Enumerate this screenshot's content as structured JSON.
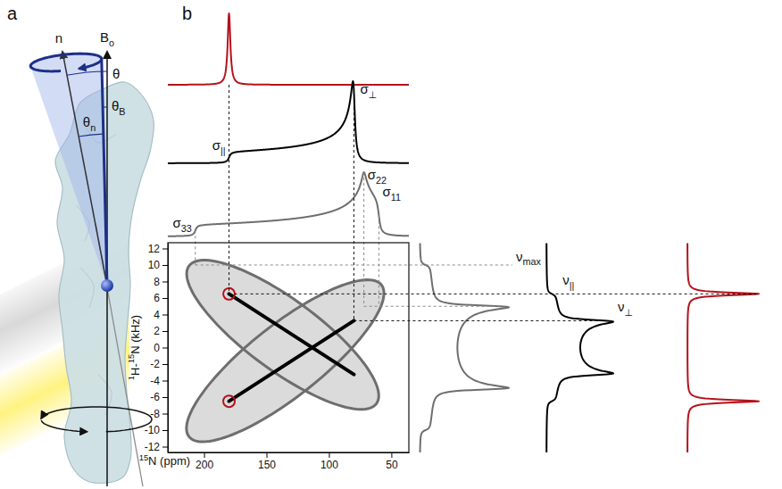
{
  "panel_a": {
    "letter": "a",
    "labels": [
      "n",
      "Bo",
      "θ",
      "θn",
      "θB"
    ]
  },
  "panel_b": {
    "letter": "b"
  },
  "chart_data": {
    "type": "pisema",
    "x_label": "15N (ppm)",
    "y_label": "1H-15N (kHz)",
    "xlim": [
      229,
      36
    ],
    "ylim": [
      -12.7,
      12.7
    ],
    "xticks": [
      200,
      150,
      100,
      50
    ],
    "yticks": [
      12,
      10,
      8,
      6,
      4,
      2,
      0,
      -2,
      -4,
      -6,
      -8,
      -10,
      -12
    ],
    "ellipses": [
      {
        "color": "#6e6e6e",
        "x": [
          212,
          62,
          120
        ],
        "y": [
          9.9,
          -6.8,
          5.0
        ]
      },
      {
        "color": "#6e6e6e",
        "x": [
          212,
          58,
          117
        ],
        "y": [
          -10.8,
          7.6,
          -5.0
        ]
      }
    ],
    "lines": [
      {
        "color": "#000000",
        "x": [
          180,
          80
        ],
        "y": [
          6.5,
          -3.25
        ]
      },
      {
        "color": "#000000",
        "x": [
          180,
          80
        ],
        "y": [
          -6.5,
          3.25
        ]
      }
    ],
    "points": {
      "color": "#b5121b",
      "marker": "open-circle",
      "x": [
        180,
        180
      ],
      "y": [
        6.5,
        -6.5
      ]
    },
    "top_spectra": [
      {
        "type": "peak",
        "color": "#b5121b",
        "values": [
          180
        ]
      },
      {
        "type": "axial",
        "color": "#000000",
        "values": [
          180,
          80
        ],
        "value_labels": [
          "σ||",
          "σ⊥"
        ]
      },
      {
        "type": "rhombic",
        "color": "#6e6e6e",
        "values": [
          60,
          72,
          207
        ],
        "value_labels": [
          "σ11",
          "σ22",
          "σ33"
        ]
      }
    ],
    "side_spectra": [
      {
        "type": "pake",
        "color": "#6e6e6e",
        "values": [
          10,
          5
        ],
        "value_labels": [
          "νmax",
          null
        ]
      },
      {
        "type": "pake",
        "color": "#000000",
        "values": [
          6.5,
          3.25
        ],
        "value_labels": [
          "ν||",
          "ν⊥"
        ]
      },
      {
        "type": "doublet",
        "color": "#b5121b",
        "values": [
          6.5,
          -6.5
        ]
      }
    ]
  }
}
